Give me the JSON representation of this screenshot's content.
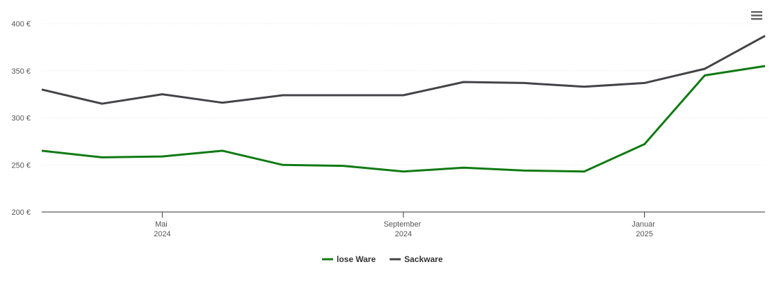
{
  "chart_data": {
    "type": "line",
    "x": [
      "2024-03",
      "2024-04",
      "2024-05",
      "2024-06",
      "2024-07",
      "2024-08",
      "2024-09",
      "2024-10",
      "2024-11",
      "2024-12",
      "2025-01",
      "2025-02",
      "2025-03"
    ],
    "series": [
      {
        "name": "lose Ware",
        "color": "#0f7a12",
        "values": [
          265,
          258,
          259,
          265,
          250,
          249,
          243,
          247,
          244,
          243,
          272,
          345,
          355
        ]
      },
      {
        "name": "Sackware",
        "color": "#434348",
        "values": [
          330,
          315,
          325,
          316,
          324,
          324,
          324,
          338,
          337,
          333,
          337,
          352,
          387
        ]
      }
    ],
    "xlim": [
      "2024-03",
      "2025-03"
    ],
    "xticks": [
      {
        "value": "2024-05",
        "label": "Mai 2024"
      },
      {
        "value": "2024-09",
        "label": "September 2024"
      },
      {
        "value": "2025-01",
        "label": "Januar 2025"
      }
    ],
    "ylim": [
      200,
      400
    ],
    "yticks": [
      {
        "value": 200,
        "label": "200 €"
      },
      {
        "value": 250,
        "label": "250 €"
      },
      {
        "value": 300,
        "label": "300 €"
      },
      {
        "value": 350,
        "label": "350 €"
      },
      {
        "value": 400,
        "label": "400 €"
      }
    ],
    "grid": true,
    "legend": "bottom"
  }
}
